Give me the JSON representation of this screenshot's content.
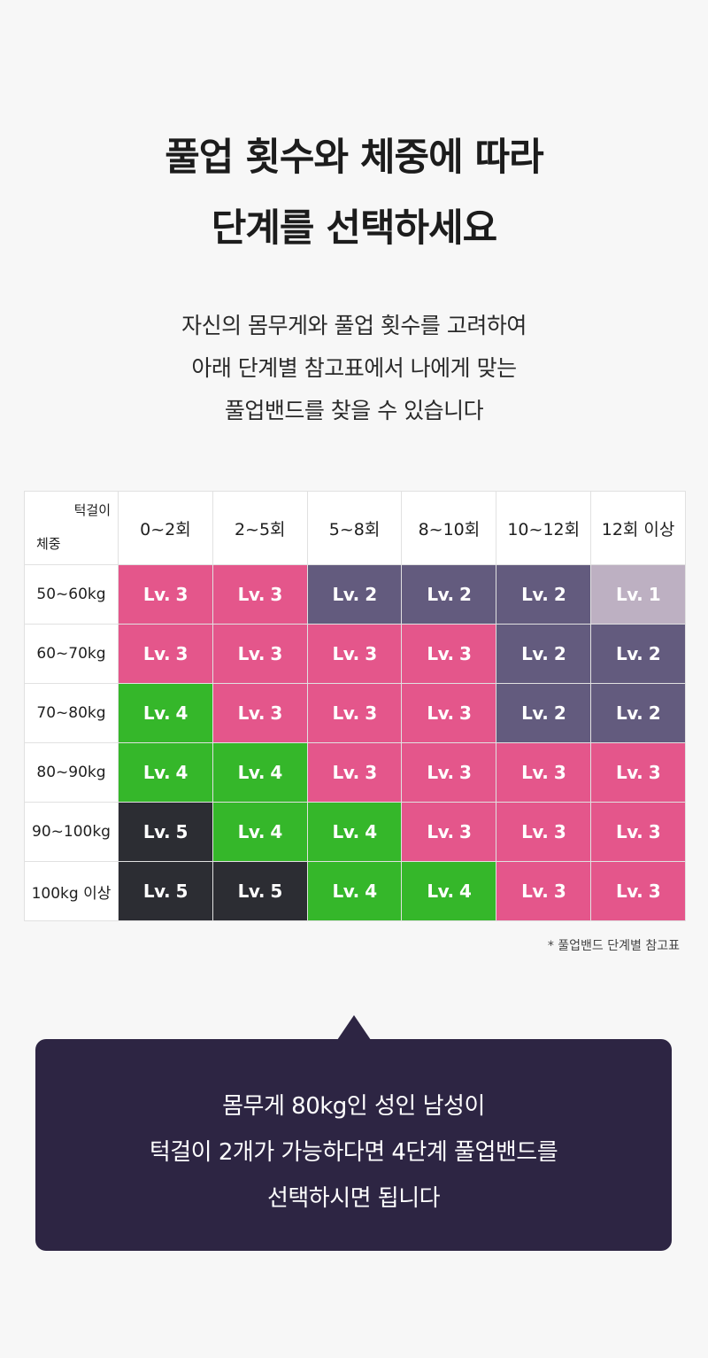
{
  "title": {
    "line1": "풀업 횟수와 체중에 따라",
    "line2": "단계를 선택하세요"
  },
  "description": [
    "자신의 몸무게와 풀업 횟수를 고려하여",
    "아래 단계별 참고표에서 나에게 맞는",
    "풀업밴드를 찾을 수 있습니다"
  ],
  "table": {
    "corner_top": "턱걸이",
    "corner_bottom": "체중",
    "columns": [
      "0~2회",
      "2~5회",
      "5~8회",
      "8~10회",
      "10~12회",
      "12회 이상"
    ],
    "rows": [
      {
        "label": "50~60kg",
        "cells": [
          "Lv. 3",
          "Lv. 3",
          "Lv. 2",
          "Lv. 2",
          "Lv. 2",
          "Lv. 1"
        ]
      },
      {
        "label": "60~70kg",
        "cells": [
          "Lv. 3",
          "Lv. 3",
          "Lv. 3",
          "Lv. 3",
          "Lv. 2",
          "Lv. 2"
        ]
      },
      {
        "label": "70~80kg",
        "cells": [
          "Lv. 4",
          "Lv. 3",
          "Lv. 3",
          "Lv. 3",
          "Lv. 2",
          "Lv. 2"
        ]
      },
      {
        "label": "80~90kg",
        "cells": [
          "Lv. 4",
          "Lv. 4",
          "Lv. 3",
          "Lv. 3",
          "Lv. 3",
          "Lv. 3"
        ]
      },
      {
        "label": "90~100kg",
        "cells": [
          "Lv. 5",
          "Lv. 4",
          "Lv. 4",
          "Lv. 3",
          "Lv. 3",
          "Lv. 3"
        ]
      },
      {
        "label": "100kg 이상",
        "cells": [
          "Lv. 5",
          "Lv. 5",
          "Lv. 4",
          "Lv. 4",
          "Lv. 3",
          "Lv. 3"
        ]
      }
    ],
    "level_colors": {
      "Lv. 1": "#bdb0c2",
      "Lv. 2": "#635b7e",
      "Lv. 3": "#e4568b",
      "Lv. 4": "#35b72a",
      "Lv. 5": "#2c2d33"
    }
  },
  "footnote": "* 풀업밴드 단계별 참고표",
  "callout": [
    "몸무게 80kg인 성인 남성이",
    "턱걸이 2개가 가능하다면 4단계 풀업밴드를",
    "선택하시면 됩니다"
  ]
}
